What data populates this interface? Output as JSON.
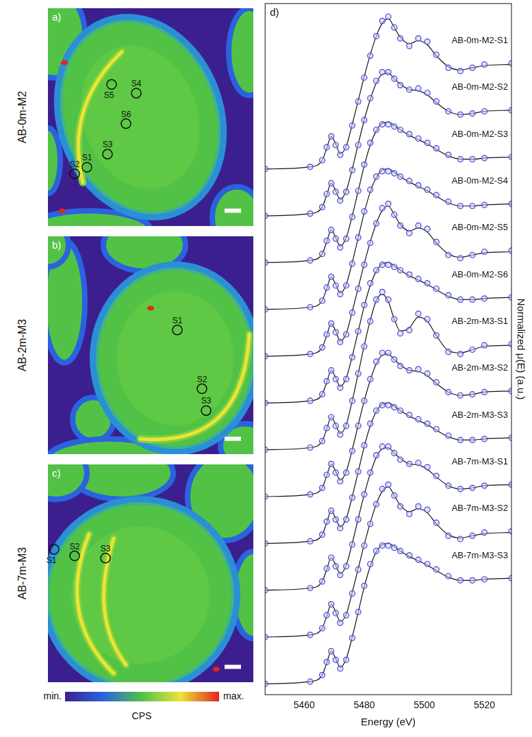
{
  "panels": [
    {
      "panel": "a)",
      "label": "AB-0m-M2",
      "spots": [
        "S1",
        "S2",
        "S3",
        "S4",
        "S5",
        "S6"
      ]
    },
    {
      "panel": "b)",
      "label": "AB-2m-M3",
      "spots": [
        "S1",
        "S2",
        "S3"
      ]
    },
    {
      "panel": "c)",
      "label": "AB-7m-M3",
      "spots": [
        "S1",
        "S2",
        "S3"
      ]
    }
  ],
  "colorbar": {
    "min_label": "min.",
    "max_label": "max.",
    "title": "CPS"
  },
  "chart_data": {
    "type": "line",
    "panel": "d)",
    "x_label": "Energy (eV)",
    "y_label": "Normalized μ(E) (a.u.)",
    "x": [
      5447,
      5462,
      5466,
      5467.5,
      5469,
      5470.5,
      5472,
      5474,
      5476,
      5478,
      5480,
      5482,
      5484,
      5486,
      5488,
      5490,
      5492,
      5495,
      5498,
      5501,
      5504,
      5508,
      5512,
      5516,
      5520,
      5529
    ],
    "xlim": [
      5447,
      5529
    ],
    "xticks": [
      5460,
      5480,
      5500,
      5520
    ],
    "ylim": [
      -0.1,
      6.25
    ],
    "tick_labels": "x",
    "grid": false,
    "color": "#4646d2",
    "marker": "circle",
    "series": [
      {
        "name": "AB-0m-M2-S1",
        "values": [
          4.73,
          4.75,
          4.81,
          4.93,
          5.03,
          4.95,
          4.86,
          4.93,
          5.13,
          5.35,
          5.57,
          5.77,
          5.95,
          6.09,
          6.13,
          6.03,
          5.93,
          5.86,
          5.93,
          5.9,
          5.78,
          5.66,
          5.63,
          5.66,
          5.69,
          5.7
        ],
        "fit": [
          4.73,
          4.75,
          4.81,
          4.92,
          5.03,
          4.96,
          4.87,
          4.94,
          5.14,
          5.36,
          5.58,
          5.78,
          5.95,
          6.07,
          6.11,
          6.03,
          5.94,
          5.88,
          5.91,
          5.87,
          5.77,
          5.67,
          5.64,
          5.66,
          5.68,
          5.69
        ]
      },
      {
        "name": "AB-0m-M2-S2",
        "values": [
          4.3,
          4.32,
          4.38,
          4.5,
          4.6,
          4.52,
          4.44,
          4.52,
          4.72,
          4.95,
          5.18,
          5.38,
          5.54,
          5.62,
          5.62,
          5.56,
          5.5,
          5.46,
          5.47,
          5.43,
          5.35,
          5.26,
          5.23,
          5.24,
          5.26,
          5.27
        ],
        "fit": [
          4.3,
          4.32,
          4.38,
          4.49,
          4.6,
          4.53,
          4.45,
          4.53,
          4.73,
          4.96,
          5.18,
          5.37,
          5.52,
          5.6,
          5.61,
          5.56,
          5.51,
          5.46,
          5.45,
          5.41,
          5.34,
          5.26,
          5.23,
          5.24,
          5.26,
          5.27
        ]
      },
      {
        "name": "AB-0m-M2-S3",
        "values": [
          3.87,
          3.89,
          3.95,
          4.07,
          4.17,
          4.09,
          4.01,
          4.09,
          4.29,
          4.53,
          4.77,
          4.97,
          5.09,
          5.14,
          5.14,
          5.12,
          5.09,
          5.05,
          5.01,
          4.97,
          4.92,
          4.86,
          4.82,
          4.82,
          4.83,
          4.84
        ],
        "fit": [
          3.87,
          3.89,
          3.95,
          4.06,
          4.17,
          4.1,
          4.02,
          4.1,
          4.3,
          4.53,
          4.76,
          4.95,
          5.08,
          5.15,
          5.16,
          5.13,
          5.09,
          5.04,
          5.0,
          4.96,
          4.91,
          4.85,
          4.82,
          4.82,
          4.83,
          4.84
        ]
      },
      {
        "name": "AB-0m-M2-S4",
        "values": [
          3.44,
          3.46,
          3.52,
          3.64,
          3.74,
          3.66,
          3.58,
          3.66,
          3.86,
          4.1,
          4.34,
          4.54,
          4.66,
          4.71,
          4.71,
          4.69,
          4.66,
          4.62,
          4.58,
          4.54,
          4.49,
          4.43,
          4.39,
          4.39,
          4.4,
          4.41
        ],
        "fit": [
          3.44,
          3.46,
          3.52,
          3.63,
          3.74,
          3.67,
          3.59,
          3.67,
          3.87,
          4.1,
          4.33,
          4.52,
          4.65,
          4.72,
          4.73,
          4.7,
          4.66,
          4.61,
          4.57,
          4.53,
          4.48,
          4.42,
          4.39,
          4.39,
          4.4,
          4.41
        ]
      },
      {
        "name": "AB-0m-M2-S5",
        "values": [
          3.01,
          3.03,
          3.09,
          3.21,
          3.31,
          3.23,
          3.14,
          3.21,
          3.41,
          3.63,
          3.85,
          4.05,
          4.23,
          4.37,
          4.41,
          4.31,
          4.21,
          4.14,
          4.21,
          4.18,
          4.06,
          3.94,
          3.91,
          3.94,
          3.97,
          3.98
        ],
        "fit": [
          3.01,
          3.03,
          3.09,
          3.2,
          3.31,
          3.24,
          3.15,
          3.22,
          3.42,
          3.64,
          3.86,
          4.06,
          4.23,
          4.35,
          4.39,
          4.31,
          4.22,
          4.16,
          4.19,
          4.15,
          4.05,
          3.95,
          3.92,
          3.94,
          3.96,
          3.97
        ]
      },
      {
        "name": "AB-0m-M2-S6",
        "values": [
          2.58,
          2.6,
          2.66,
          2.78,
          2.88,
          2.8,
          2.72,
          2.8,
          3.0,
          3.24,
          3.48,
          3.68,
          3.8,
          3.85,
          3.85,
          3.83,
          3.8,
          3.76,
          3.72,
          3.68,
          3.63,
          3.57,
          3.53,
          3.53,
          3.54,
          3.55
        ],
        "fit": [
          2.58,
          2.6,
          2.66,
          2.77,
          2.88,
          2.81,
          2.73,
          2.81,
          3.01,
          3.24,
          3.47,
          3.66,
          3.79,
          3.86,
          3.87,
          3.84,
          3.8,
          3.75,
          3.71,
          3.67,
          3.62,
          3.56,
          3.53,
          3.53,
          3.54,
          3.55
        ]
      },
      {
        "name": "AB-2m-M3-S1",
        "values": [
          2.15,
          2.17,
          2.23,
          2.35,
          2.45,
          2.37,
          2.29,
          2.37,
          2.6,
          2.85,
          3.1,
          3.33,
          3.53,
          3.6,
          3.53,
          3.35,
          3.22,
          3.25,
          3.4,
          3.35,
          3.2,
          3.05,
          3.03,
          3.07,
          3.11,
          3.12
        ],
        "fit": [
          2.15,
          2.17,
          2.23,
          2.34,
          2.45,
          2.38,
          2.3,
          2.38,
          2.6,
          2.85,
          3.11,
          3.34,
          3.52,
          3.58,
          3.51,
          3.35,
          3.24,
          3.27,
          3.37,
          3.33,
          3.2,
          3.06,
          3.04,
          3.07,
          3.1,
          3.11
        ]
      },
      {
        "name": "AB-2m-M3-S2",
        "values": [
          1.72,
          1.74,
          1.8,
          1.92,
          2.02,
          1.94,
          1.86,
          1.94,
          2.14,
          2.37,
          2.6,
          2.8,
          2.96,
          3.04,
          3.04,
          2.98,
          2.92,
          2.88,
          2.89,
          2.85,
          2.77,
          2.68,
          2.65,
          2.66,
          2.68,
          2.69
        ],
        "fit": [
          1.72,
          1.74,
          1.8,
          1.91,
          2.02,
          1.95,
          1.87,
          1.95,
          2.15,
          2.38,
          2.6,
          2.79,
          2.94,
          3.02,
          3.03,
          2.98,
          2.93,
          2.88,
          2.87,
          2.83,
          2.76,
          2.68,
          2.65,
          2.66,
          2.68,
          2.69
        ]
      },
      {
        "name": "AB-2m-M3-S3",
        "values": [
          1.29,
          1.31,
          1.37,
          1.49,
          1.59,
          1.51,
          1.43,
          1.51,
          1.71,
          1.95,
          2.19,
          2.39,
          2.51,
          2.56,
          2.56,
          2.54,
          2.51,
          2.47,
          2.43,
          2.39,
          2.34,
          2.28,
          2.24,
          2.24,
          2.25,
          2.26
        ],
        "fit": [
          1.29,
          1.31,
          1.37,
          1.48,
          1.59,
          1.52,
          1.44,
          1.52,
          1.72,
          1.95,
          2.18,
          2.37,
          2.5,
          2.57,
          2.58,
          2.55,
          2.51,
          2.46,
          2.42,
          2.38,
          2.33,
          2.27,
          2.24,
          2.24,
          2.25,
          2.26
        ]
      },
      {
        "name": "AB-7m-M3-S1",
        "values": [
          0.86,
          0.88,
          0.94,
          1.06,
          1.16,
          1.08,
          1.0,
          1.08,
          1.28,
          1.51,
          1.74,
          1.94,
          2.1,
          2.18,
          2.18,
          2.12,
          2.06,
          2.02,
          2.03,
          1.99,
          1.91,
          1.82,
          1.79,
          1.8,
          1.82,
          1.83
        ],
        "fit": [
          0.86,
          0.88,
          0.94,
          1.05,
          1.16,
          1.09,
          1.01,
          1.09,
          1.29,
          1.52,
          1.74,
          1.93,
          2.08,
          2.16,
          2.17,
          2.12,
          2.07,
          2.02,
          2.01,
          1.97,
          1.9,
          1.82,
          1.79,
          1.8,
          1.82,
          1.83
        ]
      },
      {
        "name": "AB-7m-M3-S2",
        "values": [
          0.43,
          0.45,
          0.51,
          0.63,
          0.73,
          0.65,
          0.56,
          0.63,
          0.83,
          1.05,
          1.27,
          1.47,
          1.65,
          1.79,
          1.83,
          1.73,
          1.63,
          1.56,
          1.63,
          1.6,
          1.48,
          1.36,
          1.33,
          1.36,
          1.39,
          1.4
        ],
        "fit": [
          0.43,
          0.45,
          0.51,
          0.62,
          0.73,
          0.66,
          0.57,
          0.64,
          0.84,
          1.06,
          1.28,
          1.48,
          1.65,
          1.77,
          1.81,
          1.73,
          1.64,
          1.58,
          1.61,
          1.57,
          1.47,
          1.37,
          1.34,
          1.36,
          1.38,
          1.39
        ]
      },
      {
        "name": "AB-7m-M3-S3",
        "values": [
          0,
          0.02,
          0.08,
          0.2,
          0.3,
          0.22,
          0.14,
          0.22,
          0.42,
          0.66,
          0.9,
          1.1,
          1.22,
          1.27,
          1.27,
          1.25,
          1.22,
          1.18,
          1.14,
          1.1,
          1.05,
          0.99,
          0.95,
          0.95,
          0.96,
          0.97
        ],
        "fit": [
          0,
          0.02,
          0.08,
          0.19,
          0.3,
          0.23,
          0.15,
          0.23,
          0.43,
          0.66,
          0.89,
          1.08,
          1.21,
          1.28,
          1.29,
          1.26,
          1.22,
          1.17,
          1.13,
          1.09,
          1.04,
          0.98,
          0.95,
          0.95,
          0.96,
          0.97
        ]
      }
    ]
  }
}
